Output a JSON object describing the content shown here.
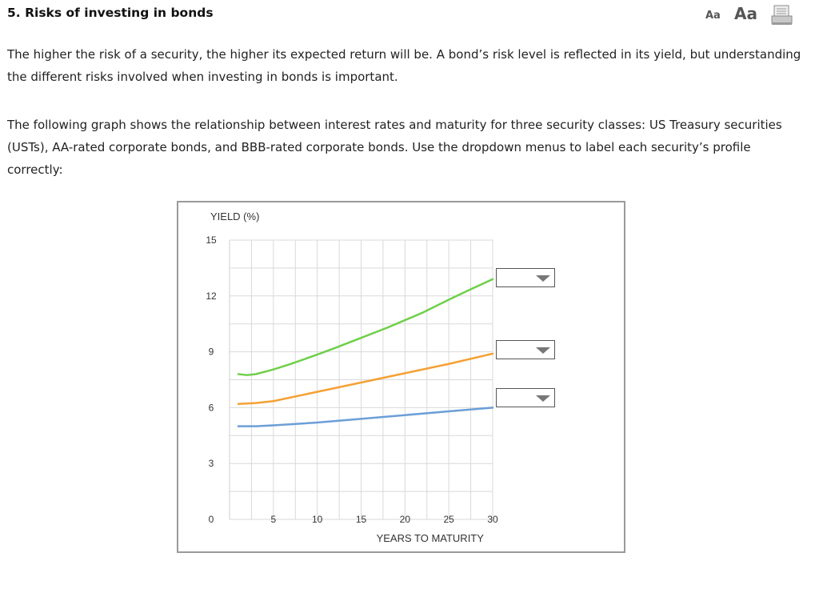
{
  "header": {
    "title": "5. Risks of investing in bonds",
    "font_small_label": "Aa",
    "font_large_label": "Aa",
    "print_icon": "print-icon"
  },
  "content": {
    "paragraph1": "The higher the risk of a security, the higher its expected return will be. A bond’s risk level is reflected in its yield, but understanding the different risks involved when investing in bonds is important.",
    "paragraph2": "The following graph shows the relationship between interest rates and maturity for three security classes: US Treasury securities (USTs), AA-rated corporate bonds, and BBB-rated corporate bonds. Use the dropdown menus to label each security’s profile correctly:"
  },
  "chart_data": {
    "type": "line",
    "ylabel": "YIELD (%)",
    "xlabel": "YEARS TO MATURITY",
    "xlim": [
      0,
      30
    ],
    "ylim": [
      0,
      15
    ],
    "x_ticks": [
      "5",
      "10",
      "15",
      "20",
      "25",
      "30"
    ],
    "y_ticks": [
      "15",
      "12",
      "9",
      "6",
      "3",
      "0"
    ],
    "origin_label": "0",
    "grid": true,
    "x_gridlines": [
      2.5,
      5,
      7.5,
      10,
      12.5,
      15,
      17.5,
      20,
      22.5,
      25,
      27.5,
      30
    ],
    "y_gridlines": [
      0,
      1.5,
      3,
      4.5,
      6,
      7.5,
      9,
      10.5,
      12,
      13.5,
      15
    ],
    "series": [
      {
        "color": "#6fcf4a",
        "x": [
          1,
          2,
          3,
          5,
          7,
          10,
          12,
          15,
          18,
          20,
          22,
          25,
          27,
          30
        ],
        "y": [
          7.8,
          7.75,
          7.8,
          8.05,
          8.35,
          8.85,
          9.2,
          9.75,
          10.3,
          10.7,
          11.1,
          11.8,
          12.25,
          12.9
        ]
      },
      {
        "color": "#f5a033",
        "x": [
          1,
          3,
          5,
          10,
          15,
          20,
          25,
          30
        ],
        "y": [
          6.2,
          6.25,
          6.35,
          6.85,
          7.35,
          7.85,
          8.35,
          8.9
        ]
      },
      {
        "color": "#6b9fd6",
        "x": [
          1,
          3,
          5,
          10,
          15,
          20,
          25,
          30
        ],
        "y": [
          5.0,
          5.0,
          5.05,
          5.2,
          5.4,
          5.6,
          5.8,
          6.0
        ]
      }
    ]
  },
  "dropdowns": [
    {
      "value": ""
    },
    {
      "value": ""
    },
    {
      "value": ""
    }
  ]
}
